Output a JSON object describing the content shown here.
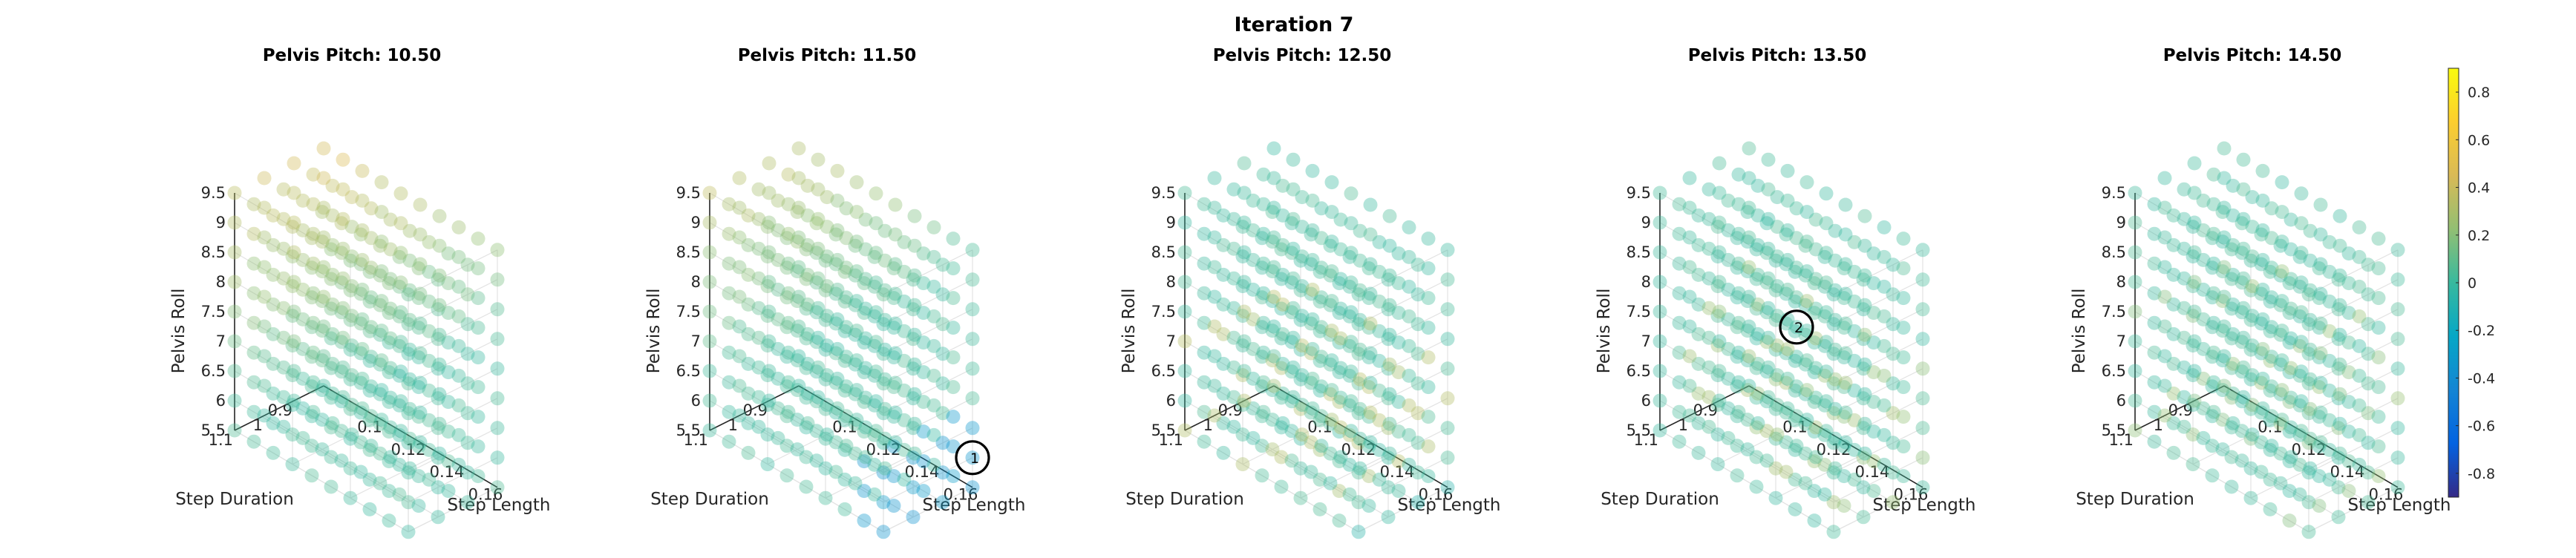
{
  "chart_data": {
    "type": "scatter",
    "title": "Iteration 7",
    "panel_title_prefix": "Pelvis Pitch: ",
    "panels": [
      {
        "pitch": "10.50",
        "marker": null
      },
      {
        "pitch": "11.50",
        "marker": {
          "label": "1",
          "step_length": 0.17,
          "step_duration": 0.85,
          "pelvis_roll": 6.0
        }
      },
      {
        "pitch": "12.50",
        "marker": null
      },
      {
        "pitch": "13.50",
        "marker": {
          "label": "2",
          "step_length": 0.12,
          "step_duration": 0.95,
          "pelvis_roll": 7.5
        }
      },
      {
        "pitch": "14.50",
        "marker": null
      }
    ],
    "axes": {
      "x": {
        "label": "Step Length",
        "range": [
          0.08,
          0.17
        ],
        "ticks": [
          "0.1",
          "0.12",
          "0.14",
          "0.16"
        ],
        "tick_values": [
          0.1,
          0.12,
          0.14,
          0.16
        ]
      },
      "y": {
        "label": "Step Duration",
        "range": [
          0.85,
          1.15
        ],
        "ticks": [
          "0.9",
          "1",
          "1.1"
        ],
        "tick_values": [
          0.9,
          1.0,
          1.1
        ]
      },
      "z": {
        "label": "Pelvis Roll",
        "range": [
          5.5,
          9.5
        ],
        "ticks": [
          "5.5",
          "6",
          "6.5",
          "7",
          "7.5",
          "8",
          "8.5",
          "9",
          "9.5"
        ],
        "tick_values": [
          5.5,
          6.0,
          6.5,
          7.0,
          7.5,
          8.0,
          8.5,
          9.0,
          9.5
        ]
      }
    },
    "grid_points": {
      "step_length": [
        0.08,
        0.09,
        0.1,
        0.11,
        0.12,
        0.13,
        0.14,
        0.15,
        0.16,
        0.17
      ],
      "step_duration": [
        0.85,
        0.95,
        1.05,
        1.15
      ],
      "pelvis_roll": [
        5.5,
        6.0,
        6.5,
        7.0,
        7.5,
        8.0,
        8.5,
        9.0,
        9.5
      ]
    },
    "colorbar": {
      "range": [
        -0.9,
        0.9
      ],
      "ticks": [
        "0.8",
        "0.6",
        "0.4",
        "0.2",
        "0",
        "-0.2",
        "-0.4",
        "-0.6",
        "-0.8"
      ],
      "tick_values": [
        0.8,
        0.6,
        0.4,
        0.2,
        0.0,
        -0.2,
        -0.4,
        -0.6,
        -0.8
      ],
      "colormap": "parula",
      "stops": [
        "#352a87",
        "#0363e1",
        "#1485d4",
        "#06a7c6",
        "#38b99e",
        "#92bf73",
        "#d9ba56",
        "#fcce2e",
        "#f9fb0e"
      ]
    },
    "grid": true
  }
}
